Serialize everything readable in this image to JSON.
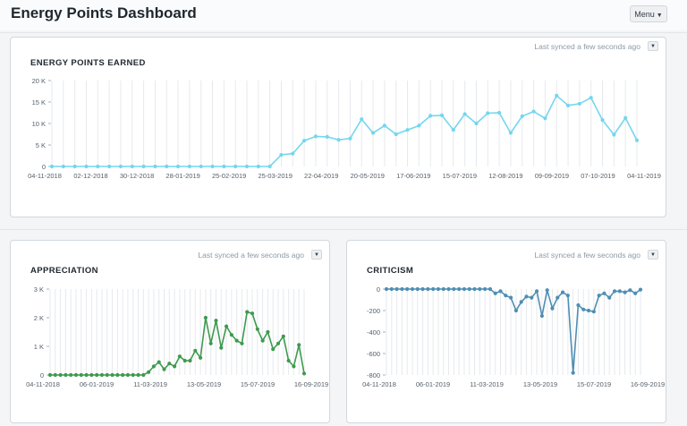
{
  "header": {
    "title": "Energy Points Dashboard",
    "menu_label": "Menu"
  },
  "cards": {
    "energy": {
      "title": "ENERGY POINTS EARNED",
      "sync_text": "Last synced a few seconds ago"
    },
    "appreciation": {
      "title": "APPRECIATION",
      "sync_text": "Last synced a few seconds ago"
    },
    "criticism": {
      "title": "CRITICISM",
      "sync_text": "Last synced a few seconds ago"
    }
  },
  "colors": {
    "energy": "#74d6ee",
    "appreciation": "#3e9a4f",
    "criticism": "#4f8eb3",
    "grid": "#e6e9ec",
    "axis_text": "#555f69"
  },
  "chart_data": [
    {
      "id": "energy",
      "type": "line",
      "title": "ENERGY POINTS EARNED",
      "ylim": [
        0,
        20000
      ],
      "y_ticks": [
        0,
        5000,
        10000,
        15000,
        20000
      ],
      "y_tick_labels": [
        "0",
        "5 K",
        "10 K",
        "15 K",
        "20 K"
      ],
      "x_tick_labels": [
        "04-11-2018",
        "02-12-2018",
        "30-12-2018",
        "28-01-2019",
        "25-02-2019",
        "25-03-2019",
        "22-04-2019",
        "20-05-2019",
        "17-06-2019",
        "15-07-2019",
        "12-08-2019",
        "09-09-2019",
        "07-10-2019",
        "04-11-2019"
      ],
      "values": [
        0,
        0,
        0,
        0,
        0,
        0,
        0,
        0,
        0,
        0,
        0,
        0,
        0,
        0,
        0,
        0,
        0,
        0,
        0,
        0,
        2700,
        3000,
        6000,
        7000,
        6900,
        6200,
        6500,
        11000,
        7800,
        9500,
        7500,
        8500,
        9500,
        11800,
        11900,
        8500,
        12200,
        10000,
        12400,
        12500,
        7800,
        11700,
        12800,
        11200,
        16500,
        14200,
        14600,
        16000,
        10800,
        7400,
        11300,
        6100
      ],
      "grid": true
    },
    {
      "id": "appreciation",
      "type": "line",
      "title": "APPRECIATION",
      "ylim": [
        0,
        3000
      ],
      "y_ticks": [
        0,
        1000,
        2000,
        3000
      ],
      "y_tick_labels": [
        "0",
        "1 K",
        "2 K",
        "3 K"
      ],
      "x_tick_labels": [
        "04-11-2018",
        "06-01-2019",
        "11-03-2019",
        "13-05-2019",
        "15-07-2019",
        "16-09-2019"
      ],
      "values": [
        0,
        0,
        0,
        0,
        0,
        0,
        0,
        0,
        0,
        0,
        0,
        0,
        0,
        0,
        0,
        0,
        0,
        0,
        0,
        100,
        300,
        450,
        200,
        400,
        300,
        650,
        500,
        500,
        850,
        600,
        2000,
        1100,
        1900,
        950,
        1700,
        1400,
        1200,
        1100,
        2200,
        2150,
        1600,
        1200,
        1500,
        900,
        1100,
        1350,
        500,
        300,
        1050,
        50
      ],
      "grid": true
    },
    {
      "id": "criticism",
      "type": "line",
      "title": "CRITICISM",
      "ylim": [
        -800,
        0
      ],
      "y_ticks": [
        0,
        -200,
        -400,
        -600,
        -800
      ],
      "y_tick_labels": [
        "0",
        "-200",
        "-400",
        "-600",
        "-800"
      ],
      "x_tick_labels": [
        "04-11-2018",
        "06-01-2019",
        "11-03-2019",
        "13-05-2019",
        "15-07-2019",
        "16-09-2019"
      ],
      "values": [
        0,
        0,
        0,
        0,
        0,
        0,
        0,
        0,
        0,
        0,
        0,
        0,
        0,
        0,
        0,
        0,
        0,
        0,
        0,
        0,
        0,
        -40,
        -20,
        -60,
        -80,
        -200,
        -120,
        -70,
        -80,
        -20,
        -250,
        -10,
        -180,
        -80,
        -30,
        -60,
        -780,
        -150,
        -190,
        -200,
        -210,
        -60,
        -40,
        -80,
        -20,
        -20,
        -30,
        -10,
        -40,
        -5
      ],
      "grid": true
    }
  ]
}
